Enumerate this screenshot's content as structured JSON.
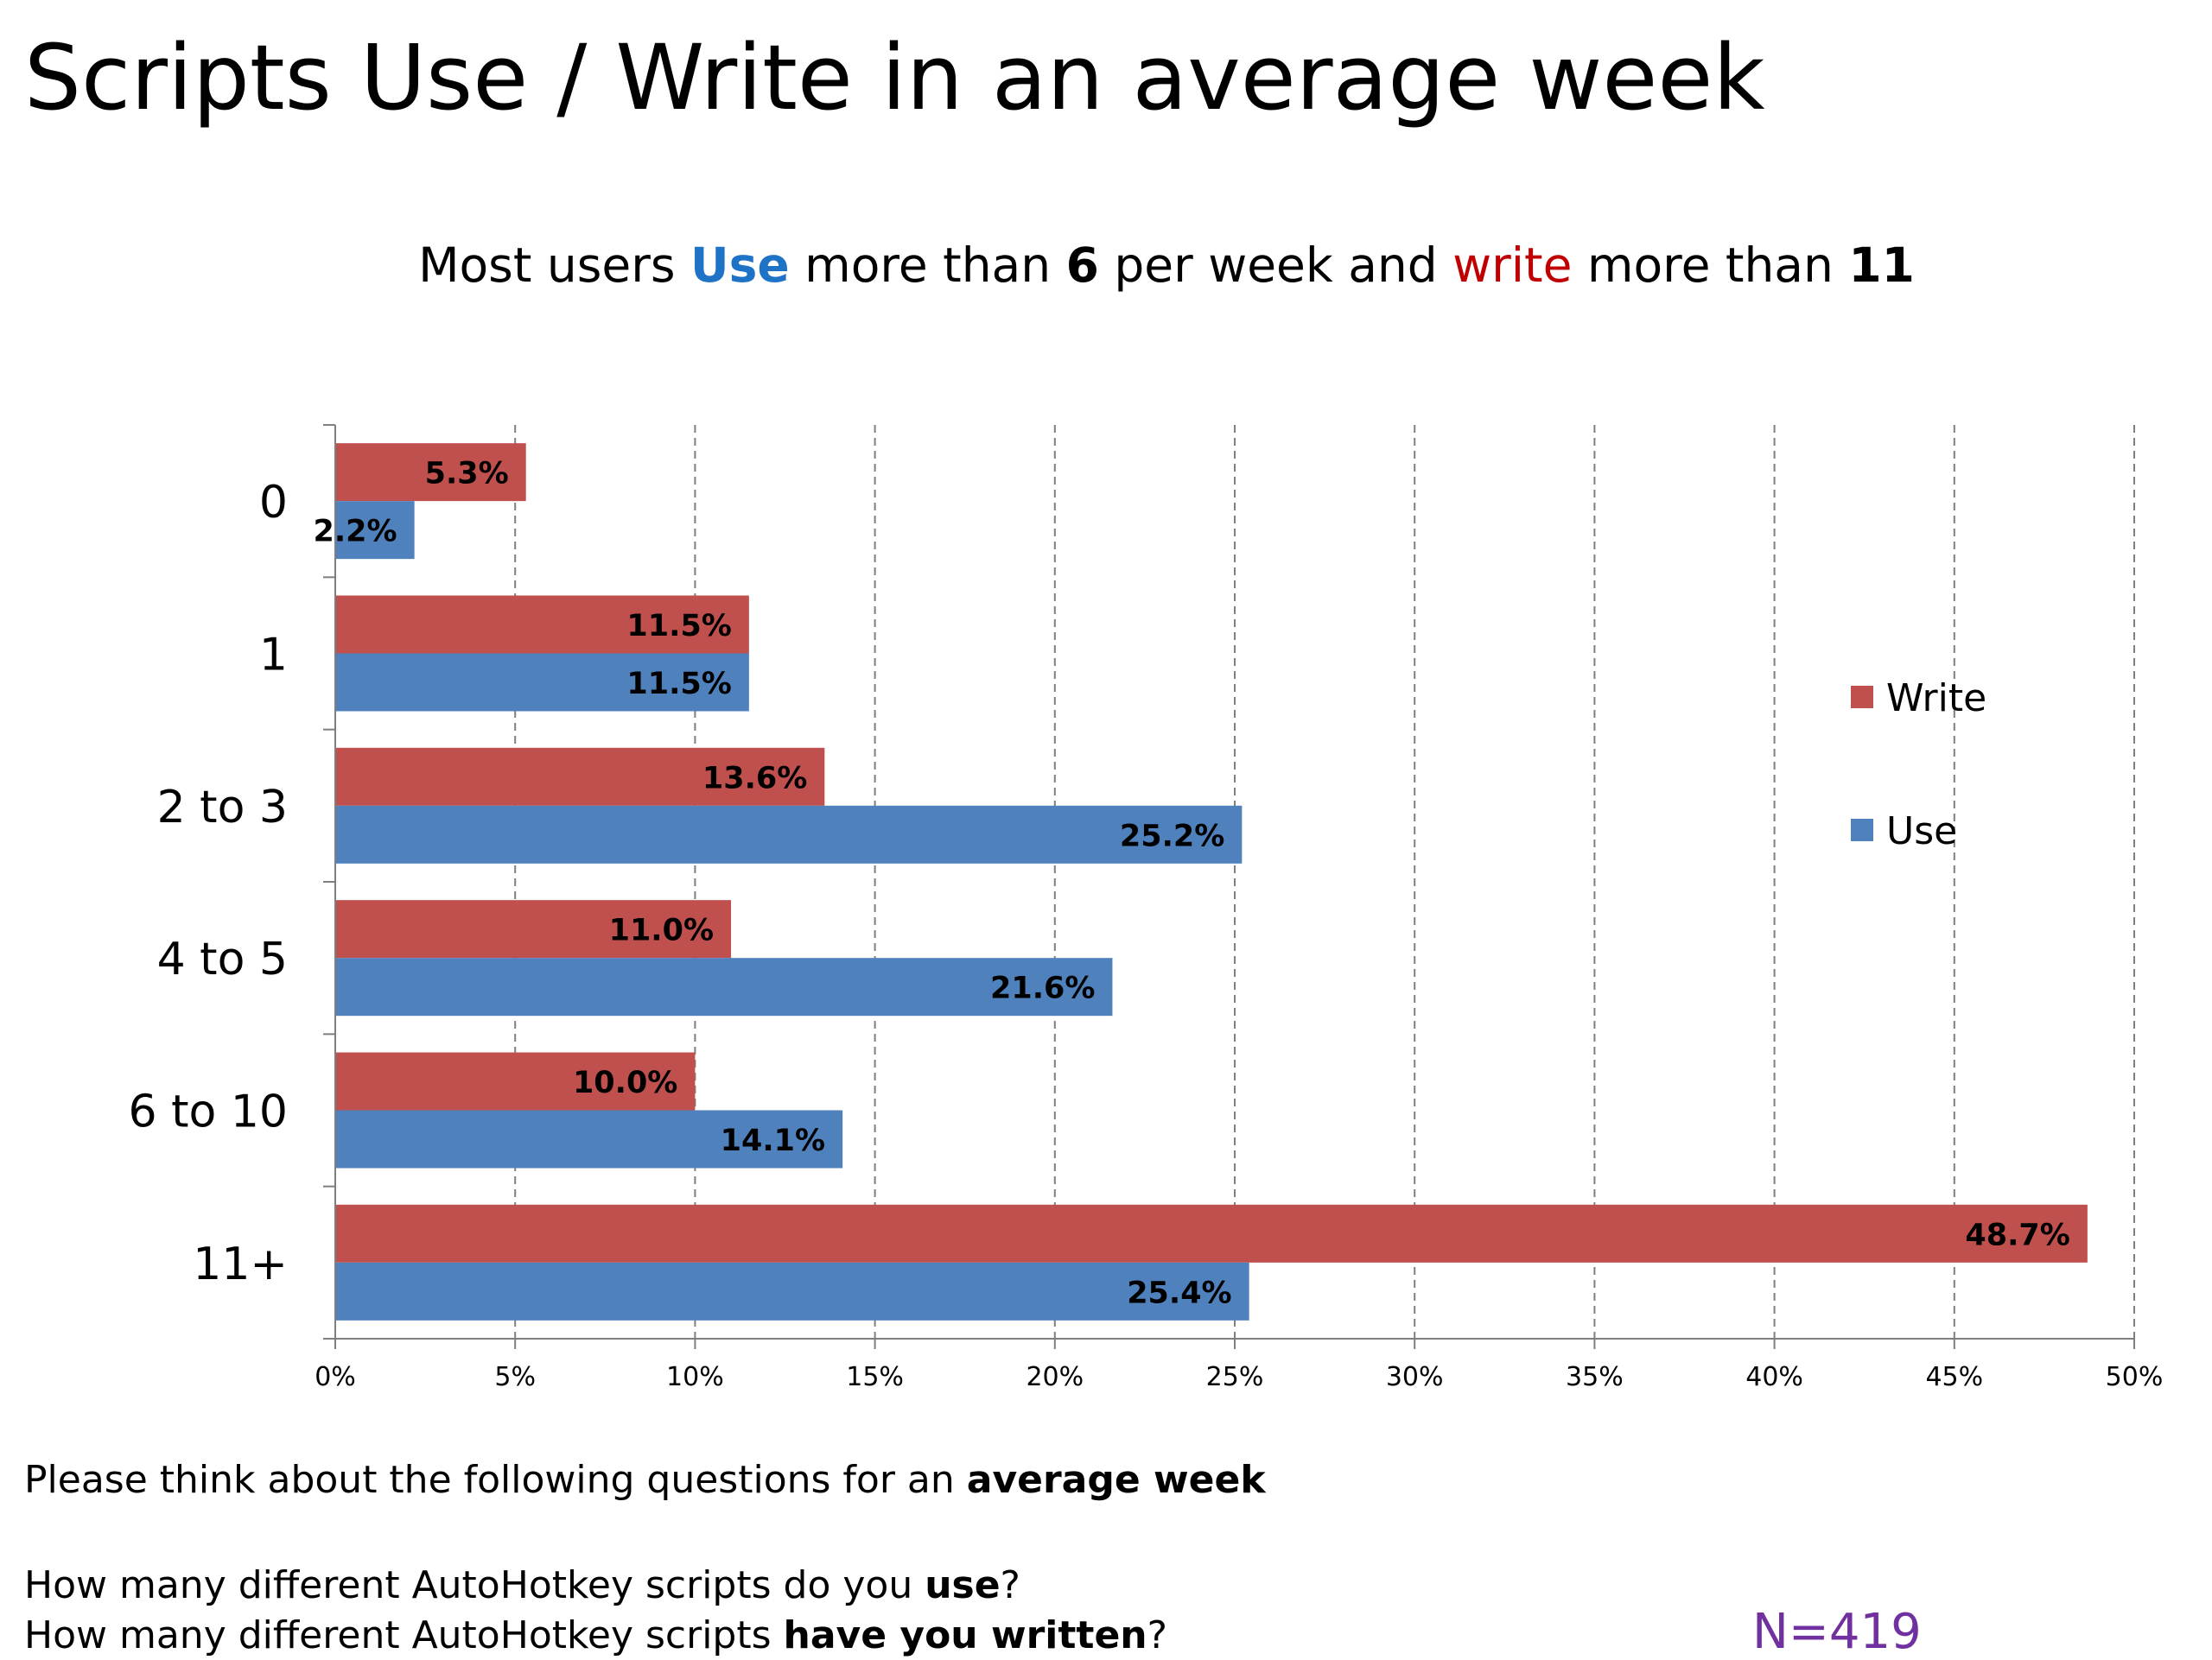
{
  "title": "Scripts Use / Write in an average week",
  "subtitle": {
    "part1": "Most users ",
    "use_word": "Use",
    "part2": " more than ",
    "num_use": "6",
    "part3": " per week and ",
    "write_word": "write",
    "part4": " more than ",
    "num_write": "11"
  },
  "colors": {
    "write": "#C0504D",
    "use": "#4F81BD",
    "use_text": "#1F73C6",
    "write_text": "#C00000",
    "sample_text": "#7030A0"
  },
  "chart_data": {
    "type": "bar",
    "orientation": "horizontal",
    "categories": [
      "0",
      "1",
      "2 to 3",
      "4 to 5",
      "6 to 10",
      "11+"
    ],
    "series": [
      {
        "name": "Write",
        "values": [
          5.3,
          11.5,
          13.6,
          11.0,
          10.0,
          48.7
        ],
        "labels": [
          "5.3%",
          "11.5%",
          "13.6%",
          "11.0%",
          "10.0%",
          "48.7%"
        ]
      },
      {
        "name": "Use",
        "values": [
          2.2,
          11.5,
          25.2,
          21.6,
          14.1,
          25.4
        ],
        "labels": [
          "2.2%",
          "11.5%",
          "25.2%",
          "21.6%",
          "14.1%",
          "25.4%"
        ]
      }
    ],
    "xlim": [
      0,
      50
    ],
    "xticks": [
      0,
      5,
      10,
      15,
      20,
      25,
      30,
      35,
      40,
      45,
      50
    ],
    "xtick_labels": [
      "0%",
      "5%",
      "10%",
      "15%",
      "20%",
      "25%",
      "30%",
      "35%",
      "40%",
      "45%",
      "50%"
    ],
    "grid": "vertical dashed",
    "legend_placement": "right",
    "xlabel": "",
    "ylabel": ""
  },
  "footer": {
    "line1_prefix": "Please think about the following questions for an ",
    "line1_bold": "average week",
    "line2_prefix": "How many different AutoHotkey scripts do you ",
    "line2_bold": "use",
    "line2_suffix": "?",
    "line3_prefix": "How many different AutoHotkey scripts ",
    "line3_bold": "have you written",
    "line3_suffix": "?",
    "sample_size": "N=419"
  }
}
